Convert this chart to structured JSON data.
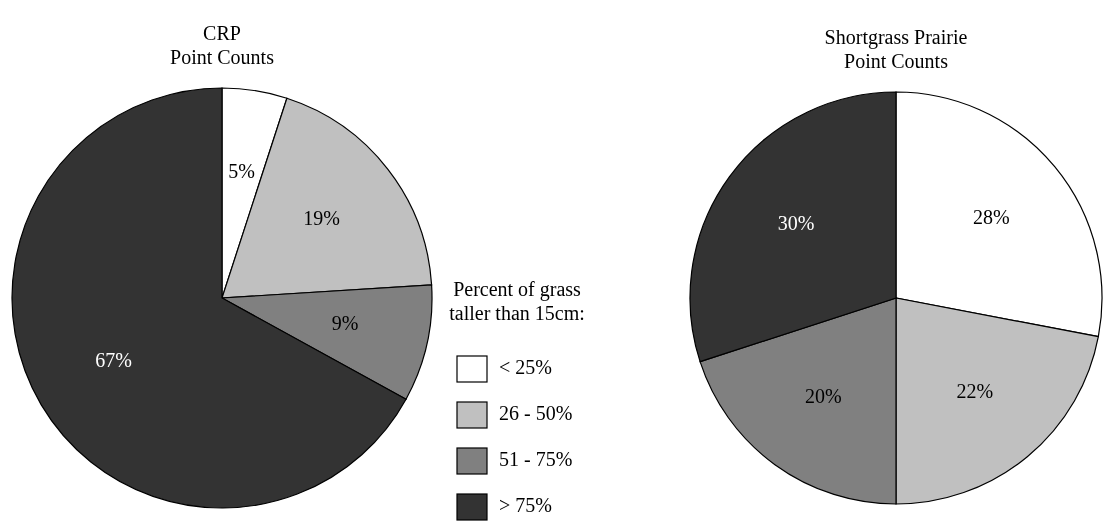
{
  "chart_data": [
    {
      "type": "pie",
      "title": "CRP",
      "subtitle": "Point Counts",
      "categories": [
        "< 25%",
        "26 - 50%",
        "51 - 75%",
        "> 75%"
      ],
      "values": [
        5,
        19,
        9,
        67
      ],
      "value_labels": [
        "5%",
        "19%",
        "9%",
        "67%"
      ],
      "colors": [
        "#ffffff",
        "#c0c0c0",
        "#808080",
        "#333333"
      ],
      "legend": "right",
      "legend_title": "Percent of grass taller than 15cm:"
    },
    {
      "type": "pie",
      "title": "Shortgrass Prairie",
      "subtitle": "Point Counts",
      "categories": [
        null,
        null,
        null,
        null
      ],
      "values": [
        28,
        22,
        20,
        30
      ],
      "value_labels": [
        "28%",
        "22%",
        "20%",
        "30%"
      ],
      "colors": [
        "#ffffff",
        "#c0c0c0",
        "#808080",
        "#333333"
      ]
    }
  ]
}
